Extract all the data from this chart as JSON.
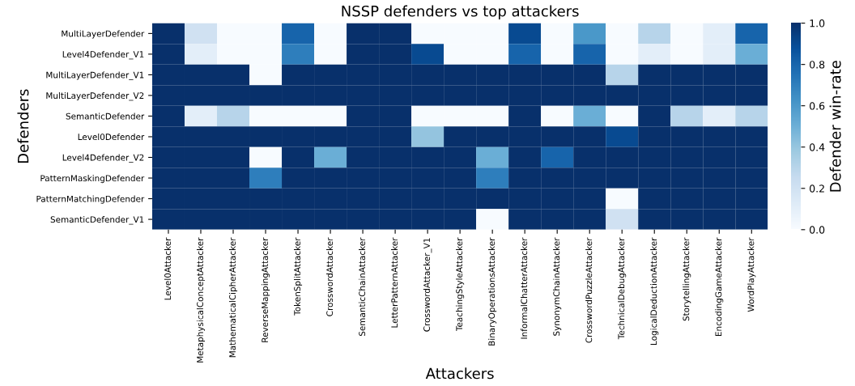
{
  "chart_data": {
    "type": "heatmap",
    "title": "NSSP defenders vs top attackers",
    "xlabel": "Attackers",
    "ylabel": "Defenders",
    "clabel": "Defender win-rate",
    "categories": [
      "Level0Attacker",
      "MetaphysicalConceptAttacker",
      "MathematicalCipherAttacker",
      "ReverseMappingAttacker",
      "TokenSplitAttacker",
      "CrosswordAttacker",
      "SemanticChainAttacker",
      "LetterPatternAttacker",
      "CrosswordAttacker_V1",
      "TeachingStyleAttacker",
      "BinaryOperationsAttacker",
      "InformalChatterAttacker",
      "SynonymChainAttacker",
      "CrosswordPuzzleAttacker",
      "TechnicalDebugAttacker",
      "LogicalDeductionAttacker",
      "StorytellingAttacker",
      "EncodingGameAttacker",
      "WordPlayAttacker"
    ],
    "y_categories": [
      "MultiLayerDefender",
      "Level4Defender_V1",
      "MultiLayerDefender_V1",
      "MultiLayerDefender_V2",
      "SemanticDefender",
      "Level0Defender",
      "Level4Defender_V2",
      "PatternMaskingDefender",
      "PatternMatchingDefender",
      "SemanticDefender_V1"
    ],
    "cells": [
      [
        1,
        0.2,
        0,
        0,
        0.8,
        0,
        1,
        1,
        0,
        0,
        0,
        0.9,
        0,
        0.6,
        0,
        0.3,
        0,
        0.1,
        0.8
      ],
      [
        1,
        0.1,
        0,
        0,
        0.7,
        0,
        1,
        1,
        0.9,
        0,
        0,
        0.8,
        0,
        0.8,
        0,
        0.1,
        0,
        0.1,
        0.5
      ],
      [
        1,
        1,
        1,
        0,
        1,
        1,
        1,
        1,
        1,
        1,
        1,
        1,
        1,
        1,
        0.3,
        1,
        1,
        1,
        1
      ],
      [
        1,
        1,
        1,
        1,
        1,
        1,
        1,
        1,
        1,
        1,
        1,
        1,
        1,
        1,
        1,
        1,
        1,
        1,
        1
      ],
      [
        1,
        0.1,
        0.3,
        0,
        0,
        0,
        1,
        1,
        0,
        0,
        0,
        1,
        0,
        0.5,
        0,
        1,
        0.3,
        0.1,
        0.3
      ],
      [
        1,
        1,
        1,
        1,
        1,
        1,
        1,
        1,
        0.4,
        1,
        1,
        1,
        1,
        1,
        0.9,
        1,
        1,
        1,
        1
      ],
      [
        1,
        1,
        1,
        0,
        1,
        0.5,
        1,
        1,
        1,
        1,
        0.5,
        1,
        0.8,
        1,
        1,
        1,
        1,
        1,
        1
      ],
      [
        1,
        1,
        1,
        0.7,
        1,
        1,
        1,
        1,
        1,
        1,
        0.7,
        1,
        1,
        1,
        1,
        1,
        1,
        1,
        1
      ],
      [
        1,
        1,
        1,
        1,
        1,
        1,
        1,
        1,
        1,
        1,
        1,
        1,
        1,
        1,
        0,
        1,
        1,
        1,
        1
      ],
      [
        1,
        1,
        1,
        1,
        1,
        1,
        1,
        1,
        1,
        1,
        0,
        1,
        1,
        1,
        0.2,
        1,
        1,
        1,
        1
      ]
    ],
    "clim": [
      0,
      1
    ],
    "cticks": [
      {
        "value": 0,
        "label": "0.0"
      },
      {
        "value": 0.2,
        "label": "0.2"
      },
      {
        "value": 0.4,
        "label": "0.4"
      },
      {
        "value": 0.6,
        "label": "0.6"
      },
      {
        "value": 0.8,
        "label": "0.8"
      },
      {
        "value": 1,
        "label": "1.0"
      }
    ]
  }
}
